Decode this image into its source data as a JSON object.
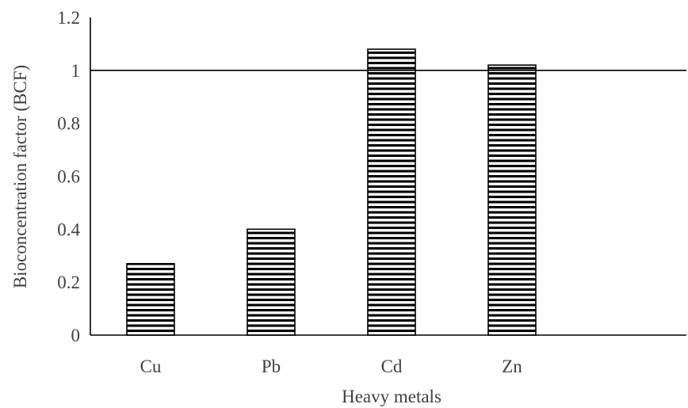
{
  "chart_data": {
    "type": "bar",
    "categories": [
      "Cu",
      "Pb",
      "Cd",
      "Zn"
    ],
    "values": [
      0.27,
      0.4,
      1.08,
      1.02
    ],
    "xlabel": "Heavy metals",
    "ylabel": "Bioconcentration factor (BCF)",
    "ylim": [
      0,
      1.2
    ],
    "yticks": [
      "0",
      "0.2",
      "0.4",
      "0.6",
      "0.8",
      "1",
      "1.2"
    ],
    "reference_line": 1,
    "bar_fill": "horizontal-stripes",
    "bar_color": "#000000",
    "grid": false,
    "legend": "none"
  }
}
